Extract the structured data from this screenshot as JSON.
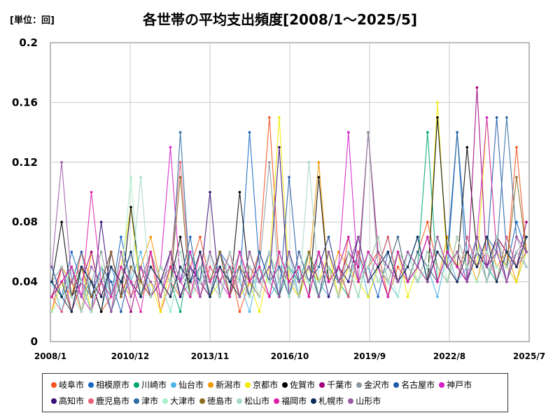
{
  "unit_label": "[単位：回]",
  "chart_data": {
    "type": "line",
    "title": "各世帯の平均支出頻度[2008/1～2025/5]",
    "xlabel": "",
    "ylabel": "",
    "ylim": [
      0,
      0.2
    ],
    "yticks": [
      "0",
      "0.04",
      "0.08",
      "0.12",
      "0.16",
      "0.2"
    ],
    "xticks": [
      "2008/1",
      "2010/12",
      "2013/11",
      "2016/10",
      "2019/9",
      "2022/8",
      "2025/7"
    ],
    "x_start": "2008/1",
    "x_end": "2025/7",
    "grid": true,
    "legend_position": "bottom",
    "series": [
      {
        "name": "岐阜市",
        "color": "#f4511e",
        "values": [
          0.02,
          0.05,
          0.03,
          0.06,
          0.04,
          0.02,
          0.03,
          0.05,
          0.04,
          0.03,
          0.06,
          0.02,
          0.04,
          0.03,
          0.05,
          0.07,
          0.04,
          0.03,
          0.05,
          0.02,
          0.04,
          0.06,
          0.15,
          0.05,
          0.04,
          0.03,
          0.06,
          0.04,
          0.05,
          0.03,
          0.07,
          0.04,
          0.05,
          0.06,
          0.03,
          0.05,
          0.04,
          0.06,
          0.08,
          0.05,
          0.04,
          0.06,
          0.05,
          0.07,
          0.04,
          0.06,
          0.05,
          0.13,
          0.06
        ]
      },
      {
        "name": "相模原市",
        "color": "#1565c0",
        "values": [
          0.05,
          0.03,
          0.06,
          0.04,
          0.02,
          0.05,
          0.03,
          0.07,
          0.04,
          0.03,
          0.05,
          0.04,
          0.06,
          0.03,
          0.05,
          0.04,
          0.03,
          0.06,
          0.05,
          0.04,
          0.14,
          0.05,
          0.03,
          0.06,
          0.04,
          0.05,
          0.03,
          0.06,
          0.04,
          0.05,
          0.07,
          0.04,
          0.05,
          0.03,
          0.06,
          0.04,
          0.05,
          0.07,
          0.04,
          0.06,
          0.05,
          0.14,
          0.06,
          0.05,
          0.07,
          0.06,
          0.05,
          0.08,
          0.06
        ]
      },
      {
        "name": "川崎市",
        "color": "#00a676",
        "values": [
          0.03,
          0.04,
          0.02,
          0.05,
          0.03,
          0.04,
          0.06,
          0.03,
          0.05,
          0.04,
          0.03,
          0.05,
          0.04,
          0.02,
          0.06,
          0.04,
          0.03,
          0.05,
          0.04,
          0.06,
          0.03,
          0.05,
          0.04,
          0.03,
          0.05,
          0.04,
          0.06,
          0.03,
          0.05,
          0.04,
          0.03,
          0.06,
          0.04,
          0.05,
          0.03,
          0.06,
          0.04,
          0.05,
          0.14,
          0.04,
          0.06,
          0.05,
          0.04,
          0.06,
          0.05,
          0.04,
          0.07,
          0.05,
          0.06
        ]
      },
      {
        "name": "仙台市",
        "color": "#4fb3e8",
        "values": [
          0.04,
          0.02,
          0.05,
          0.03,
          0.04,
          0.02,
          0.05,
          0.03,
          0.04,
          0.06,
          0.03,
          0.04,
          0.02,
          0.05,
          0.03,
          0.04,
          0.06,
          0.03,
          0.05,
          0.04,
          0.02,
          0.05,
          0.03,
          0.04,
          0.06,
          0.03,
          0.05,
          0.04,
          0.03,
          0.05,
          0.04,
          0.06,
          0.03,
          0.05,
          0.04,
          0.03,
          0.06,
          0.04,
          0.05,
          0.03,
          0.06,
          0.04,
          0.05,
          0.07,
          0.04,
          0.06,
          0.05,
          0.04,
          0.06
        ]
      },
      {
        "name": "新潟市",
        "color": "#f29900",
        "values": [
          0.03,
          0.05,
          0.04,
          0.02,
          0.06,
          0.03,
          0.05,
          0.04,
          0.03,
          0.05,
          0.07,
          0.04,
          0.03,
          0.05,
          0.04,
          0.06,
          0.03,
          0.05,
          0.04,
          0.03,
          0.06,
          0.04,
          0.05,
          0.03,
          0.06,
          0.04,
          0.05,
          0.12,
          0.04,
          0.06,
          0.05,
          0.03,
          0.06,
          0.04,
          0.05,
          0.07,
          0.04,
          0.06,
          0.05,
          0.04,
          0.07,
          0.05,
          0.06,
          0.04,
          0.07,
          0.05,
          0.06,
          0.04,
          0.07
        ]
      },
      {
        "name": "京都市",
        "color": "#f2ea00",
        "values": [
          0.02,
          0.04,
          0.03,
          0.05,
          0.02,
          0.04,
          0.03,
          0.05,
          0.09,
          0.03,
          0.04,
          0.02,
          0.05,
          0.03,
          0.04,
          0.06,
          0.03,
          0.04,
          0.05,
          0.03,
          0.04,
          0.02,
          0.05,
          0.15,
          0.04,
          0.03,
          0.05,
          0.04,
          0.06,
          0.03,
          0.05,
          0.04,
          0.03,
          0.05,
          0.04,
          0.06,
          0.03,
          0.05,
          0.04,
          0.16,
          0.05,
          0.04,
          0.06,
          0.05,
          0.15,
          0.06,
          0.05,
          0.04,
          0.06
        ]
      },
      {
        "name": "佐賀市",
        "color": "#000000",
        "values": [
          0.04,
          0.08,
          0.03,
          0.05,
          0.04,
          0.02,
          0.06,
          0.03,
          0.09,
          0.04,
          0.03,
          0.05,
          0.04,
          0.07,
          0.03,
          0.05,
          0.04,
          0.06,
          0.03,
          0.1,
          0.04,
          0.05,
          0.03,
          0.06,
          0.04,
          0.05,
          0.03,
          0.11,
          0.04,
          0.05,
          0.03,
          0.06,
          0.04,
          0.05,
          0.07,
          0.04,
          0.06,
          0.05,
          0.04,
          0.15,
          0.06,
          0.05,
          0.13,
          0.06,
          0.05,
          0.07,
          0.06,
          0.05,
          0.07
        ]
      },
      {
        "name": "千葉市",
        "color": "#a0007a",
        "values": [
          0.03,
          0.05,
          0.02,
          0.04,
          0.06,
          0.03,
          0.05,
          0.04,
          0.02,
          0.05,
          0.03,
          0.04,
          0.06,
          0.03,
          0.05,
          0.04,
          0.03,
          0.06,
          0.04,
          0.05,
          0.03,
          0.06,
          0.04,
          0.05,
          0.03,
          0.06,
          0.04,
          0.05,
          0.07,
          0.04,
          0.06,
          0.05,
          0.14,
          0.06,
          0.05,
          0.04,
          0.06,
          0.05,
          0.04,
          0.07,
          0.05,
          0.06,
          0.04,
          0.17,
          0.05,
          0.07,
          0.06,
          0.05,
          0.08
        ]
      },
      {
        "name": "金沢市",
        "color": "#8a9aa0",
        "values": [
          0.04,
          0.03,
          0.05,
          0.02,
          0.04,
          0.06,
          0.03,
          0.05,
          0.04,
          0.03,
          0.06,
          0.04,
          0.05,
          0.03,
          0.04,
          0.06,
          0.03,
          0.05,
          0.04,
          0.06,
          0.03,
          0.05,
          0.12,
          0.04,
          0.05,
          0.03,
          0.06,
          0.04,
          0.05,
          0.03,
          0.06,
          0.04,
          0.14,
          0.05,
          0.04,
          0.06,
          0.05,
          0.04,
          0.06,
          0.05,
          0.04,
          0.07,
          0.05,
          0.06,
          0.04,
          0.07,
          0.05,
          0.06,
          0.07
        ]
      },
      {
        "name": "名古屋市",
        "color": "#1e5aa8",
        "values": [
          0.05,
          0.03,
          0.04,
          0.06,
          0.03,
          0.05,
          0.04,
          0.02,
          0.05,
          0.04,
          0.06,
          0.03,
          0.05,
          0.04,
          0.07,
          0.03,
          0.05,
          0.04,
          0.06,
          0.03,
          0.05,
          0.04,
          0.06,
          0.03,
          0.11,
          0.04,
          0.05,
          0.03,
          0.06,
          0.04,
          0.05,
          0.07,
          0.04,
          0.05,
          0.06,
          0.04,
          0.05,
          0.07,
          0.04,
          0.06,
          0.05,
          0.04,
          0.07,
          0.05,
          0.06,
          0.15,
          0.06,
          0.05,
          0.07
        ]
      },
      {
        "name": "神戸市",
        "color": "#d61fc8",
        "values": [
          0.03,
          0.04,
          0.05,
          0.03,
          0.02,
          0.04,
          0.06,
          0.03,
          0.05,
          0.04,
          0.03,
          0.05,
          0.13,
          0.04,
          0.06,
          0.03,
          0.05,
          0.04,
          0.03,
          0.06,
          0.04,
          0.05,
          0.03,
          0.06,
          0.04,
          0.05,
          0.03,
          0.06,
          0.04,
          0.05,
          0.14,
          0.04,
          0.06,
          0.05,
          0.03,
          0.06,
          0.04,
          0.05,
          0.07,
          0.04,
          0.06,
          0.05,
          0.04,
          0.07,
          0.15,
          0.06,
          0.04,
          0.07,
          0.05
        ]
      },
      {
        "name": "高知市",
        "color": "#3a1078",
        "values": [
          0.04,
          0.05,
          0.03,
          0.04,
          0.02,
          0.08,
          0.03,
          0.05,
          0.04,
          0.03,
          0.05,
          0.04,
          0.06,
          0.03,
          0.05,
          0.04,
          0.1,
          0.03,
          0.05,
          0.04,
          0.03,
          0.06,
          0.04,
          0.13,
          0.03,
          0.05,
          0.04,
          0.06,
          0.03,
          0.05,
          0.04,
          0.07,
          0.04,
          0.05,
          0.03,
          0.06,
          0.04,
          0.05,
          0.07,
          0.04,
          0.06,
          0.05,
          0.04,
          0.06,
          0.05,
          0.07,
          0.04,
          0.06,
          0.05
        ]
      },
      {
        "name": "鹿児島市",
        "color": "#e8607a",
        "values": [
          0.03,
          0.02,
          0.04,
          0.05,
          0.03,
          0.04,
          0.02,
          0.05,
          0.03,
          0.04,
          0.06,
          0.03,
          0.05,
          0.12,
          0.04,
          0.03,
          0.05,
          0.04,
          0.06,
          0.03,
          0.05,
          0.04,
          0.03,
          0.06,
          0.04,
          0.05,
          0.03,
          0.06,
          0.04,
          0.05,
          0.03,
          0.06,
          0.04,
          0.05,
          0.07,
          0.04,
          0.06,
          0.05,
          0.04,
          0.06,
          0.05,
          0.04,
          0.07,
          0.05,
          0.06,
          0.04,
          0.07,
          0.05,
          0.06
        ]
      },
      {
        "name": "津市",
        "color": "#2d6ca2",
        "values": [
          0.04,
          0.03,
          0.05,
          0.04,
          0.03,
          0.05,
          0.02,
          0.04,
          0.06,
          0.03,
          0.05,
          0.04,
          0.03,
          0.14,
          0.04,
          0.05,
          0.03,
          0.06,
          0.04,
          0.05,
          0.03,
          0.06,
          0.04,
          0.05,
          0.03,
          0.06,
          0.04,
          0.05,
          0.07,
          0.04,
          0.05,
          0.03,
          0.06,
          0.04,
          0.05,
          0.07,
          0.04,
          0.06,
          0.05,
          0.04,
          0.06,
          0.14,
          0.04,
          0.07,
          0.05,
          0.06,
          0.15,
          0.07,
          0.06
        ]
      },
      {
        "name": "大津市",
        "color": "#a8f0c8",
        "values": [
          0.02,
          0.03,
          0.05,
          0.04,
          0.02,
          0.05,
          0.03,
          0.04,
          0.11,
          0.03,
          0.05,
          0.04,
          0.02,
          0.05,
          0.03,
          0.04,
          0.06,
          0.03,
          0.05,
          0.04,
          0.03,
          0.05,
          0.04,
          0.06,
          0.03,
          0.05,
          0.04,
          0.03,
          0.06,
          0.04,
          0.05,
          0.03,
          0.06,
          0.04,
          0.05,
          0.03,
          0.06,
          0.04,
          0.05,
          0.07,
          0.04,
          0.06,
          0.05,
          0.04,
          0.06,
          0.05,
          0.04,
          0.07,
          0.05
        ]
      },
      {
        "name": "徳島市",
        "color": "#8b6b1f",
        "values": [
          0.03,
          0.04,
          0.02,
          0.05,
          0.03,
          0.04,
          0.06,
          0.03,
          0.05,
          0.04,
          0.03,
          0.05,
          0.04,
          0.11,
          0.03,
          0.05,
          0.04,
          0.06,
          0.03,
          0.05,
          0.04,
          0.03,
          0.06,
          0.04,
          0.05,
          0.03,
          0.06,
          0.04,
          0.05,
          0.03,
          0.06,
          0.04,
          0.05,
          0.07,
          0.04,
          0.06,
          0.05,
          0.04,
          0.06,
          0.05,
          0.04,
          0.07,
          0.05,
          0.06,
          0.04,
          0.07,
          0.05,
          0.11,
          0.06
        ]
      },
      {
        "name": "松山市",
        "color": "#a8d8c8",
        "values": [
          0.04,
          0.05,
          0.03,
          0.02,
          0.05,
          0.04,
          0.03,
          0.06,
          0.04,
          0.11,
          0.03,
          0.05,
          0.04,
          0.06,
          0.03,
          0.05,
          0.04,
          0.03,
          0.06,
          0.04,
          0.05,
          0.03,
          0.06,
          0.04,
          0.05,
          0.03,
          0.12,
          0.04,
          0.05,
          0.03,
          0.06,
          0.04,
          0.05,
          0.07,
          0.04,
          0.06,
          0.05,
          0.04,
          0.06,
          0.05,
          0.04,
          0.07,
          0.05,
          0.06,
          0.04,
          0.07,
          0.05,
          0.06,
          0.05
        ]
      },
      {
        "name": "福岡市",
        "color": "#e020a8",
        "values": [
          0.03,
          0.04,
          0.05,
          0.03,
          0.1,
          0.04,
          0.03,
          0.05,
          0.04,
          0.02,
          0.06,
          0.03,
          0.05,
          0.04,
          0.03,
          0.06,
          0.04,
          0.05,
          0.03,
          0.06,
          0.04,
          0.05,
          0.03,
          0.06,
          0.04,
          0.05,
          0.03,
          0.06,
          0.04,
          0.05,
          0.07,
          0.04,
          0.06,
          0.05,
          0.03,
          0.06,
          0.04,
          0.05,
          0.07,
          0.04,
          0.06,
          0.05,
          0.04,
          0.07,
          0.05,
          0.06,
          0.04,
          0.07,
          0.06
        ]
      },
      {
        "name": "札幌市",
        "color": "#0b2d5a",
        "values": [
          0.04,
          0.03,
          0.02,
          0.05,
          0.04,
          0.03,
          0.05,
          0.04,
          0.06,
          0.03,
          0.05,
          0.04,
          0.03,
          0.05,
          0.04,
          0.06,
          0.03,
          0.05,
          0.04,
          0.03,
          0.06,
          0.04,
          0.05,
          0.03,
          0.06,
          0.04,
          0.05,
          0.03,
          0.06,
          0.04,
          0.05,
          0.07,
          0.04,
          0.05,
          0.06,
          0.04,
          0.05,
          0.07,
          0.04,
          0.06,
          0.05,
          0.04,
          0.06,
          0.05,
          0.07,
          0.04,
          0.06,
          0.05,
          0.07
        ]
      },
      {
        "name": "山形市",
        "color": "#9b59a6",
        "values": [
          0.05,
          0.12,
          0.04,
          0.03,
          0.05,
          0.04,
          0.02,
          0.06,
          0.03,
          0.05,
          0.04,
          0.03,
          0.06,
          0.04,
          0.05,
          0.03,
          0.06,
          0.04,
          0.05,
          0.03,
          0.06,
          0.04,
          0.05,
          0.03,
          0.06,
          0.04,
          0.05,
          0.03,
          0.06,
          0.04,
          0.05,
          0.07,
          0.04,
          0.06,
          0.05,
          0.04,
          0.06,
          0.05,
          0.04,
          0.07,
          0.05,
          0.06,
          0.04,
          0.07,
          0.05,
          0.06,
          0.04,
          0.07,
          0.06
        ]
      }
    ]
  }
}
